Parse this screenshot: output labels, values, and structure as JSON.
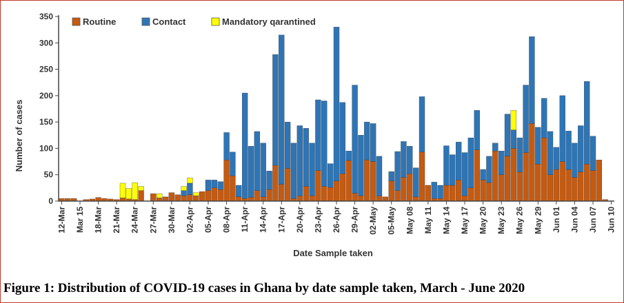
{
  "caption": "Figure 1: Distribution of COVID-19 cases in Ghana by date sample taken, March - June 2020",
  "chart_data": {
    "type": "bar",
    "stacked": true,
    "xlabel": "Date Sample taken",
    "ylabel": "Number of cases",
    "ylim": [
      0,
      350
    ],
    "yticks": [
      0,
      50,
      100,
      150,
      200,
      250,
      300,
      350
    ],
    "grid": false,
    "legend_position": "top-left",
    "colors": {
      "Routine": "#c55a11",
      "Contact": "#2e75b6",
      "Mandatory qarantined": "#ffff00"
    },
    "xtick_labels": [
      "12-Mar",
      "Mar 15",
      "18-Mar",
      "21-Mar",
      "24-Mar",
      "27-Mar",
      "30-Mar",
      "02-Apr",
      "05-Apr",
      "08-Apr",
      "11-Apr",
      "14-Apr",
      "17-Apr",
      "20-Apr",
      "23-Apr",
      "26-Apr",
      "29-Apr",
      "02-May",
      "05-May",
      "May 08",
      "May 11",
      "May 14",
      "May 17",
      "May 20",
      "May 23",
      "May 26",
      "May 29",
      "Jun 01",
      "Jun 04",
      "Jun 07",
      "Jun 10"
    ],
    "categories": [
      "12-Mar",
      "13-Mar",
      "14-Mar",
      "15-Mar",
      "16-Mar",
      "17-Mar",
      "18-Mar",
      "19-Mar",
      "20-Mar",
      "21-Mar",
      "22-Mar",
      "23-Mar",
      "24-Mar",
      "25-Mar",
      "26-Mar",
      "27-Mar",
      "28-Mar",
      "29-Mar",
      "30-Mar",
      "31-Mar",
      "01-Apr",
      "02-Apr",
      "03-Apr",
      "04-Apr",
      "05-Apr",
      "06-Apr",
      "07-Apr",
      "08-Apr",
      "09-Apr",
      "10-Apr",
      "11-Apr",
      "12-Apr",
      "13-Apr",
      "14-Apr",
      "15-Apr",
      "16-Apr",
      "17-Apr",
      "18-Apr",
      "19-Apr",
      "20-Apr",
      "21-Apr",
      "22-Apr",
      "23-Apr",
      "24-Apr",
      "25-Apr",
      "26-Apr",
      "27-Apr",
      "28-Apr",
      "29-Apr",
      "30-Apr",
      "01-May",
      "02-May",
      "03-May",
      "04-May",
      "05-May",
      "06-May",
      "07-May",
      "08-May",
      "09-May",
      "10-May",
      "11-May",
      "12-May",
      "13-May",
      "14-May",
      "15-May",
      "16-May",
      "17-May",
      "18-May",
      "19-May",
      "20-May",
      "21-May",
      "22-May",
      "23-May",
      "24-May",
      "25-May",
      "26-May",
      "27-May",
      "28-May",
      "29-May",
      "30-May",
      "31-May",
      "01-Jun",
      "02-Jun",
      "03-Jun",
      "04-Jun",
      "05-Jun",
      "06-Jun",
      "07-Jun",
      "08-Jun",
      "09-Jun",
      "10-Jun"
    ],
    "series": [
      {
        "name": "Routine",
        "values": [
          5,
          5,
          5,
          0,
          3,
          4,
          7,
          5,
          4,
          3,
          6,
          4,
          3,
          20,
          0,
          14,
          6,
          8,
          16,
          12,
          10,
          12,
          10,
          18,
          20,
          25,
          22,
          78,
          48,
          8,
          5,
          7,
          20,
          8,
          22,
          68,
          32,
          62,
          5,
          10,
          28,
          10,
          58,
          28,
          26,
          38,
          52,
          77,
          15,
          10,
          78,
          75,
          10,
          8,
          38,
          20,
          45,
          52,
          8,
          93,
          30,
          5,
          5,
          30,
          30,
          40,
          10,
          25,
          97,
          40,
          35,
          95,
          50,
          85,
          100,
          55,
          92,
          147,
          70,
          120,
          50,
          60,
          75,
          60,
          45,
          55,
          70,
          58,
          78,
          3,
          0
        ]
      },
      {
        "name": "Contact",
        "values": [
          0,
          0,
          0,
          0,
          0,
          0,
          0,
          0,
          0,
          0,
          0,
          0,
          0,
          0,
          0,
          0,
          0,
          0,
          0,
          0,
          10,
          22,
          0,
          0,
          20,
          15,
          15,
          52,
          45,
          22,
          200,
          97,
          112,
          102,
          35,
          210,
          283,
          88,
          105,
          133,
          110,
          100,
          134,
          162,
          45,
          292,
          135,
          18,
          205,
          115,
          72,
          72,
          75,
          0,
          18,
          74,
          68,
          52,
          55,
          105,
          0,
          31,
          25,
          75,
          58,
          72,
          82,
          95,
          75,
          20,
          50,
          15,
          45,
          80,
          35,
          65,
          128,
          165,
          70,
          75,
          82,
          42,
          125,
          73,
          65,
          88,
          157,
          65,
          0,
          0,
          0
        ]
      },
      {
        "name": "Mandatory qarantined",
        "values": [
          0,
          0,
          0,
          0,
          0,
          0,
          0,
          0,
          0,
          0,
          28,
          20,
          32,
          8,
          0,
          0,
          8,
          0,
          0,
          0,
          8,
          10,
          6,
          0,
          0,
          0,
          0,
          0,
          0,
          0,
          0,
          0,
          0,
          0,
          0,
          0,
          0,
          0,
          0,
          0,
          0,
          0,
          0,
          0,
          0,
          0,
          0,
          0,
          0,
          0,
          0,
          0,
          0,
          0,
          0,
          0,
          0,
          0,
          0,
          0,
          0,
          0,
          0,
          0,
          0,
          0,
          0,
          0,
          0,
          0,
          0,
          0,
          0,
          0,
          37,
          0,
          0,
          0,
          0,
          0,
          0,
          0,
          0,
          0,
          0,
          0,
          0,
          0,
          0,
          0,
          0
        ]
      }
    ]
  }
}
